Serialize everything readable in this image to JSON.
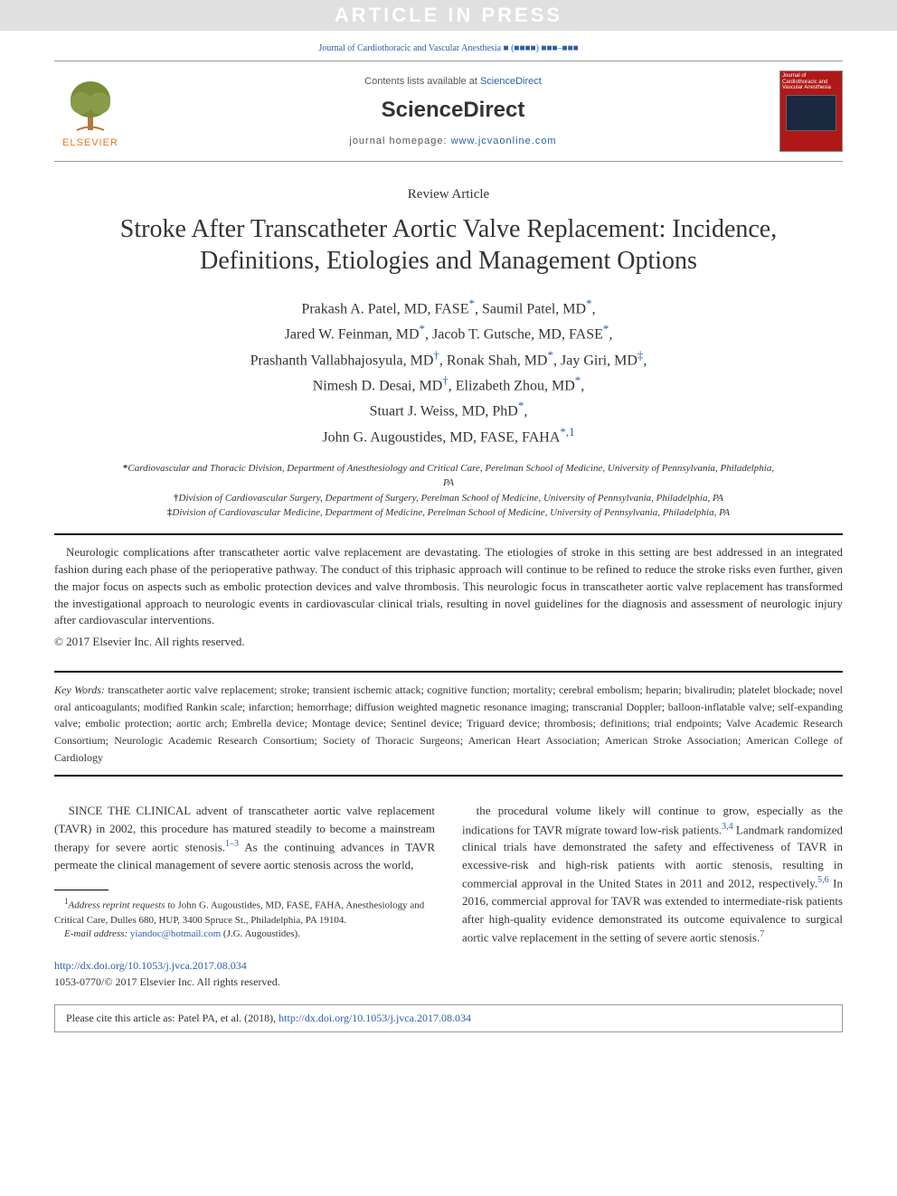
{
  "watermark": "ARTICLE IN PRESS",
  "journal_ref": "Journal of Cardiothoracic and Vascular Anesthesia ■ (■■■■) ■■■–■■■",
  "header": {
    "elsevier_label": "ELSEVIER",
    "contents_prefix": "Contents lists available at ",
    "contents_link": "ScienceDirect",
    "brand": "ScienceDirect",
    "homepage_prefix": "journal homepage: ",
    "homepage_link": "www.jcvaonline.com",
    "cover_title": "Journal of Cardiothoracic and Vascular Anesthesia"
  },
  "article_type": "Review Article",
  "title": "Stroke After Transcatheter Aortic Valve Replacement: Incidence, Definitions, Etiologies and Management Options",
  "authors_html": "Prakash A. Patel, MD, FASE<span class=\"sup\">*</span>, Saumil Patel, MD<span class=\"sup\">*</span>,<br>Jared W. Feinman, MD<span class=\"sup\">*</span>, Jacob T. Gutsche, MD, FASE<span class=\"sup\">*</span>,<br>Prashanth Vallabhajosyula, MD<span class=\"sup\">†</span>, Ronak Shah, MD<span class=\"sup\">*</span>, Jay Giri, MD<span class=\"sup\">‡</span>,<br>Nimesh D. Desai, MD<span class=\"sup\">†</span>, Elizabeth Zhou, MD<span class=\"sup\">*</span>,<br>Stuart J. Weiss, MD, PhD<span class=\"sup\">*</span>,<br>John G. Augoustides, MD, FASE, FAHA<span class=\"sup\">*,1</span>",
  "affiliations": [
    {
      "marker": "*",
      "text": "Cardiovascular and Thoracic Division, Department of Anesthesiology and Critical Care, Perelman School of Medicine, University of Pennsylvania, Philadelphia, PA"
    },
    {
      "marker": "†",
      "text": "Division of Cardiovascular Surgery, Department of Surgery, Perelman School of Medicine, University of Pennsylvania, Philadelphia, PA"
    },
    {
      "marker": "‡",
      "text": "Division of Cardiovascular Medicine, Department of Medicine, Perelman School of Medicine, University of Pennsylvania, Philadelphia, PA"
    }
  ],
  "abstract": "Neurologic complications after transcatheter aortic valve replacement are devastating. The etiologies of stroke in this setting are best addressed in an integrated fashion during each phase of the perioperative pathway. The conduct of this triphasic approach will continue to be refined to reduce the stroke risks even further, given the major focus on aspects such as embolic protection devices and valve thrombosis. This neurologic focus in transcatheter aortic valve replacement has transformed the investigational approach to neurologic events in cardiovascular clinical trials, resulting in novel guidelines for the diagnosis and assessment of neurologic injury after cardiovascular interventions.",
  "copyright": "© 2017 Elsevier Inc. All rights reserved.",
  "keywords_label": "Key Words:",
  "keywords": "transcatheter aortic valve replacement; stroke; transient ischemic attack; cognitive function; mortality; cerebral embolism; heparin; bivalirudin; platelet blockade; novel oral anticoagulants; modified Rankin scale; infarction; hemorrhage; diffusion weighted magnetic resonance imaging; transcranial Doppler; balloon-inflatable valve; self-expanding valve; embolic protection; aortic arch; Embrella device; Montage device; Sentinel device; Triguard device; thrombosis; definitions; trial endpoints; Valve Academic Research Consortium; Neurologic Academic Research Consortium; Society of Thoracic Surgeons; American Heart Association; American Stroke Association; American College of Cardiology",
  "body": {
    "col1_html": "SINCE THE CLINICAL advent of transcatheter aortic valve replacement (TAVR) in 2002, this procedure has matured steadily to become a mainstream therapy for severe aortic stenosis.<span class=\"ref\">1–3</span> As the continuing advances in TAVR permeate the clinical management of severe aortic stenosis across the world,",
    "col2_html": "the procedural volume likely will continue to grow, especially as the indications for TAVR migrate toward low-risk patients.<span class=\"ref\">3,4</span> Landmark randomized clinical trials have demonstrated the safety and effectiveness of TAVR in excessive-risk and high-risk patients with aortic stenosis, resulting in commercial approval in the United States in 2011 and 2012, respectively.<span class=\"ref\">5,6</span> In 2016, commercial approval for TAVR was extended to intermediate-risk patients after high-quality evidence demonstrated its outcome equivalence to surgical aortic valve replacement in the setting of severe aortic stenosis.<span class=\"ref\">7</span>"
  },
  "footnotes": {
    "address_marker": "1",
    "address_label": "Address reprint requests to",
    "address_text": " John G. Augoustides, MD, FASE, FAHA, Anesthesiology and Critical Care, Dulles 680, HUP, 3400 Spruce St., Philadelphia, PA 19104.",
    "email_label": "E-mail address: ",
    "email": "yiandoc@hotmail.com",
    "email_att": " (J.G. Augoustides)."
  },
  "doi": {
    "link": "http://dx.doi.org/10.1053/j.jvca.2017.08.034",
    "pub": "1053-0770/© 2017 Elsevier Inc. All rights reserved."
  },
  "cite_box": {
    "prefix": "Please cite this article as: Patel PA, et al. (2018), ",
    "link": "http://dx.doi.org/10.1053/j.jvca.2017.08.034"
  },
  "colors": {
    "link": "#2b5eac",
    "elsevier_orange": "#e87722",
    "cover_bg": "#b01818"
  }
}
